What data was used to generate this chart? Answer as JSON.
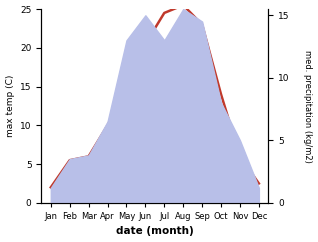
{
  "months": [
    "Jan",
    "Feb",
    "Mar",
    "Apr",
    "May",
    "Jun",
    "Jul",
    "Aug",
    "Sep",
    "Oct",
    "Nov",
    "Dec"
  ],
  "month_positions": [
    1,
    2,
    3,
    4,
    5,
    6,
    7,
    8,
    9,
    10,
    11,
    12
  ],
  "temperature": [
    2.0,
    5.5,
    6.0,
    10.0,
    15.0,
    20.5,
    24.5,
    25.5,
    23.0,
    14.0,
    6.0,
    2.5
  ],
  "precipitation": [
    1.2,
    3.5,
    3.8,
    6.5,
    13.0,
    15.0,
    13.0,
    15.5,
    14.5,
    8.0,
    5.0,
    1.2
  ],
  "temp_color": "#c0392b",
  "precip_fill_color": "#b8bfe8",
  "temp_ylim": [
    0,
    25
  ],
  "precip_ylim": [
    0,
    15.5
  ],
  "temp_yticks": [
    0,
    5,
    10,
    15,
    20,
    25
  ],
  "precip_yticks": [
    0,
    5,
    10,
    15
  ],
  "ylabel_left": "max temp (C)",
  "ylabel_right": "med. precipitation (kg/m2)",
  "xlabel": "date (month)",
  "figsize": [
    3.18,
    2.42
  ],
  "dpi": 100
}
